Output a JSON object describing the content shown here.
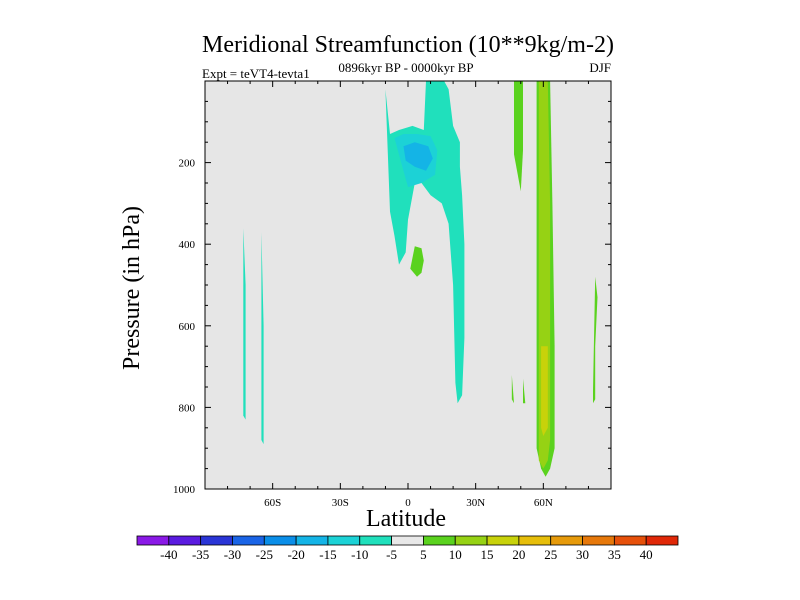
{
  "chart_data": {
    "type": "contour",
    "title": "Meridional Streamfunction (10**9kg/m-2)",
    "subtitle": "0896kyr BP - 0000kyr BP",
    "left_label": "Expt = teVT4-tevta1",
    "right_label": "DJF",
    "xlabel": "Latitude",
    "ylabel": "Pressure (in hPa)",
    "xlim": [
      -90,
      90
    ],
    "ylim": [
      1000,
      0
    ],
    "x_ticks": [
      {
        "value": -60,
        "label": "60S"
      },
      {
        "value": -30,
        "label": "30S"
      },
      {
        "value": 0,
        "label": "0"
      },
      {
        "value": 30,
        "label": "30N"
      },
      {
        "value": 60,
        "label": "60N"
      }
    ],
    "y_ticks": [
      {
        "value": 200,
        "label": "200"
      },
      {
        "value": 400,
        "label": "400"
      },
      {
        "value": 600,
        "label": "600"
      },
      {
        "value": 800,
        "label": "800"
      },
      {
        "value": 1000,
        "label": "1000"
      }
    ],
    "levels": [
      -40,
      -35,
      -30,
      -25,
      -20,
      -15,
      -10,
      -5,
      5,
      10,
      15,
      20,
      25,
      30,
      35,
      40
    ],
    "colorbar_colors": [
      "#8a19e6",
      "#5a1be0",
      "#2a35d6",
      "#1a64e6",
      "#0a8ee8",
      "#14b4e6",
      "#1cd2d6",
      "#20e0bc",
      "#e8e8e8",
      "#5ad21e",
      "#96d214",
      "#c8d20a",
      "#e6be0a",
      "#e69a0a",
      "#e6780a",
      "#e6500a",
      "#e02808"
    ],
    "regions": [
      {
        "level": "-5 to -10",
        "color": "#20e0bc",
        "polygon": [
          [
            -10,
            20
          ],
          [
            -8,
            320
          ],
          [
            -6,
            380
          ],
          [
            -4,
            450
          ],
          [
            -1,
            420
          ],
          [
            0,
            340
          ],
          [
            3,
            250
          ],
          [
            6,
            250
          ],
          [
            10,
            280
          ],
          [
            15,
            300
          ],
          [
            18,
            350
          ],
          [
            20,
            500
          ],
          [
            21,
            740
          ],
          [
            22,
            790
          ],
          [
            24,
            770
          ],
          [
            25,
            630
          ],
          [
            25,
            400
          ],
          [
            24,
            280
          ],
          [
            23,
            210
          ],
          [
            23,
            150
          ],
          [
            20,
            110
          ],
          [
            18,
            20
          ],
          [
            16,
            0
          ],
          [
            8,
            0
          ],
          [
            7,
            120
          ],
          [
            2,
            110
          ],
          [
            -4,
            120
          ],
          [
            -8,
            130
          ]
        ]
      },
      {
        "level": "-5 to -10",
        "color": "#20e0bc",
        "polygon": [
          [
            -73,
            360
          ],
          [
            -72,
            500
          ],
          [
            -72,
            830
          ],
          [
            -73,
            820
          ]
        ]
      },
      {
        "level": "-5 to -10",
        "color": "#20e0bc",
        "polygon": [
          [
            -65,
            370
          ],
          [
            -64,
            600
          ],
          [
            -64,
            890
          ],
          [
            -65,
            880
          ]
        ]
      },
      {
        "level": "-10 to -15",
        "color": "#1cd2d6",
        "polygon": [
          [
            -6,
            140
          ],
          [
            -2,
            130
          ],
          [
            4,
            130
          ],
          [
            10,
            135
          ],
          [
            13,
            170
          ],
          [
            12,
            230
          ],
          [
            6,
            250
          ],
          [
            0,
            260
          ],
          [
            -3,
            200
          ]
        ]
      },
      {
        "level": "-15 to -20",
        "color": "#14b4e6",
        "polygon": [
          [
            -2,
            160
          ],
          [
            3,
            150
          ],
          [
            9,
            160
          ],
          [
            11,
            190
          ],
          [
            8,
            220
          ],
          [
            3,
            210
          ],
          [
            -1,
            195
          ]
        ]
      },
      {
        "level": "5 to 10",
        "color": "#5ad21e",
        "polygon": [
          [
            1,
            460
          ],
          [
            3,
            405
          ],
          [
            6,
            410
          ],
          [
            7,
            440
          ],
          [
            6,
            470
          ],
          [
            4,
            480
          ]
        ]
      },
      {
        "level": "5 to 10",
        "color": "#5ad21e",
        "polygon": [
          [
            47,
            0
          ],
          [
            51,
            0
          ],
          [
            51,
            170
          ],
          [
            50,
            270
          ],
          [
            47,
            180
          ]
        ]
      },
      {
        "level": "5 to 10",
        "color": "#5ad21e",
        "polygon": [
          [
            46,
            720
          ],
          [
            47,
            790
          ],
          [
            46,
            780
          ]
        ]
      },
      {
        "level": "5 to 10",
        "color": "#5ad21e",
        "polygon": [
          [
            51,
            730
          ],
          [
            52,
            790
          ],
          [
            51,
            790
          ]
        ]
      },
      {
        "level": "5 to 10",
        "color": "#5ad21e",
        "polygon": [
          [
            57,
            0
          ],
          [
            63,
            0
          ],
          [
            64,
            300
          ],
          [
            65,
            650
          ],
          [
            65,
            900
          ],
          [
            63,
            950
          ],
          [
            61,
            970
          ],
          [
            59,
            950
          ],
          [
            57,
            900
          ],
          [
            57,
            650
          ],
          [
            57,
            300
          ]
        ]
      },
      {
        "level": "10 to 15",
        "color": "#96d214",
        "polygon": [
          [
            58,
            0
          ],
          [
            62,
            0
          ],
          [
            63,
            300
          ],
          [
            63,
            650
          ],
          [
            63,
            880
          ],
          [
            62,
            930
          ],
          [
            60,
            950
          ],
          [
            58,
            930
          ],
          [
            58,
            650
          ],
          [
            58,
            300
          ]
        ]
      },
      {
        "level": "15 to 20",
        "color": "#c8d20a",
        "polygon": [
          [
            59,
            650
          ],
          [
            62,
            650
          ],
          [
            62,
            850
          ],
          [
            60,
            870
          ],
          [
            59,
            850
          ]
        ]
      },
      {
        "level": "5 to 10",
        "color": "#5ad21e",
        "polygon": [
          [
            83,
            480
          ],
          [
            84,
            530
          ],
          [
            83,
            650
          ],
          [
            83,
            780
          ],
          [
            82,
            790
          ],
          [
            82,
            760
          ]
        ]
      }
    ]
  }
}
